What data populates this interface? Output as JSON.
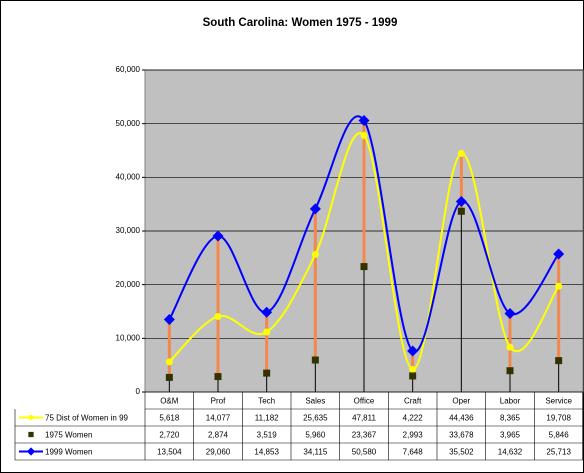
{
  "chart_data": {
    "type": "line",
    "title": "South Carolina: Women 1975 - 1999",
    "categories": [
      "O&M",
      "Prof",
      "Tech",
      "Sales",
      "Office",
      "Craft",
      "Oper",
      "Labor",
      "Service"
    ],
    "series": [
      {
        "name": "75 Dist of Women in 99",
        "color": "#ffff00",
        "marker": "circle",
        "smooth": true,
        "values": [
          5618,
          14077,
          11182,
          25635,
          47811,
          4222,
          44436,
          8365,
          19708
        ],
        "value_labels": [
          "5,618",
          "14,077",
          "11,182",
          "25,635",
          "47,811",
          "4,222",
          "44,436",
          "8,365",
          "19,708"
        ]
      },
      {
        "name": "1975 Women",
        "color": "#333300",
        "marker": "square",
        "smooth": false,
        "values": [
          2720,
          2874,
          3519,
          5960,
          23367,
          2993,
          33678,
          3965,
          5846
        ],
        "value_labels": [
          "2,720",
          "2,874",
          "3,519",
          "5,960",
          "23,367",
          "2,993",
          "33,678",
          "3,965",
          "5,846"
        ]
      },
      {
        "name": "1999 Women",
        "color": "#0000ff",
        "marker": "diamond",
        "smooth": true,
        "values": [
          13504,
          29060,
          14853,
          34115,
          50580,
          7648,
          35502,
          14632,
          25713
        ],
        "value_labels": [
          "13,504",
          "29,060",
          "14,853",
          "34,115",
          "50,580",
          "7,648",
          "35,502",
          "14,632",
          "25,713"
        ]
      }
    ],
    "ylim": [
      0,
      60000
    ],
    "yticks": [
      0,
      {
        "value": 10000,
        "label": "10,000"
      },
      {
        "value": 20000,
        "label": "20,000"
      },
      {
        "value": 30000,
        "label": "30,000"
      },
      {
        "value": 40000,
        "label": "40,000"
      },
      {
        "value": 50000,
        "label": "50,000"
      },
      {
        "value": 60000,
        "label": "60,000"
      }
    ],
    "grid": true
  }
}
